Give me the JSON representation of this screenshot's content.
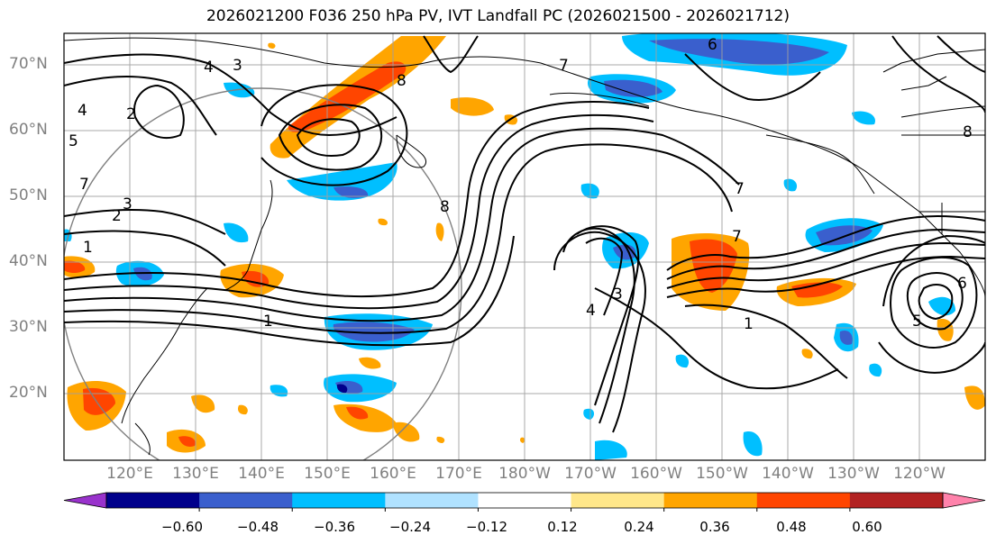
{
  "title": "2026021200 F036 250 hPa PV, IVT Landfall PC (2026021500 - 2026021712)",
  "map": {
    "lat_labels": [
      "70°N",
      "60°N",
      "50°N",
      "40°N",
      "30°N",
      "20°N"
    ],
    "lon_labels": [
      "120°E",
      "130°E",
      "140°E",
      "150°E",
      "160°E",
      "170°E",
      "180°W",
      "170°W",
      "160°W",
      "150°W",
      "140°W",
      "130°W",
      "120°W"
    ],
    "lat_range": [
      10,
      75
    ],
    "lon_range": [
      110,
      250
    ],
    "grid": true
  },
  "colorbar": {
    "ticks": [
      "−0.60",
      "−0.48",
      "−0.36",
      "−0.24",
      "−0.12",
      "0.12",
      "0.24",
      "0.36",
      "0.48",
      "0.60"
    ],
    "colors": [
      "#9932CC",
      "#00008B",
      "#3A5FCD",
      "#00BFFF",
      "#B0E2FF",
      "#FFFFFF",
      "#FFE78A",
      "#FFA500",
      "#FF4500",
      "#B22222",
      "#FF82AB"
    ]
  },
  "contour_labels": [
    "1",
    "2",
    "3",
    "4",
    "5",
    "6",
    "7",
    "8"
  ]
}
